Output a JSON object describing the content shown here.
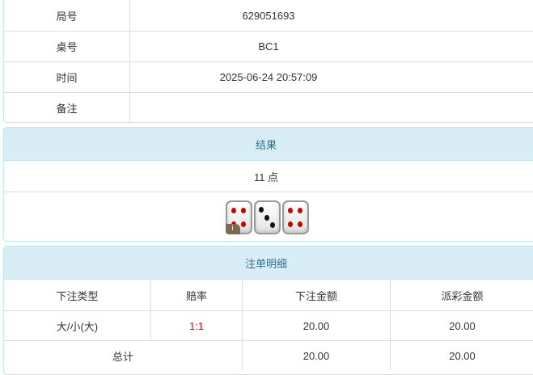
{
  "info": {
    "rows": [
      {
        "label": "局号",
        "value": "629051693"
      },
      {
        "label": "桌号",
        "value": "BC1"
      },
      {
        "label": "时间",
        "value": "2025-06-24 20:57:09"
      },
      {
        "label": "备注",
        "value": ""
      }
    ]
  },
  "result": {
    "title": "结果",
    "points": "11 点",
    "dice": [
      4,
      3,
      4
    ],
    "info_badge": "i"
  },
  "bets": {
    "title": "注单明细",
    "headers": [
      "下注类型",
      "赔率",
      "下注金额",
      "派彩金额"
    ],
    "rows": [
      {
        "type": "大/小(大)",
        "odds": "1:1",
        "amount": "20.00",
        "payout": "20.00"
      }
    ],
    "total": {
      "label": "总计",
      "amount": "20.00",
      "payout": "20.00"
    },
    "colors": {
      "odds": "#ee0000",
      "header_bg": "#d9edf7",
      "header_text": "#31708f"
    }
  }
}
